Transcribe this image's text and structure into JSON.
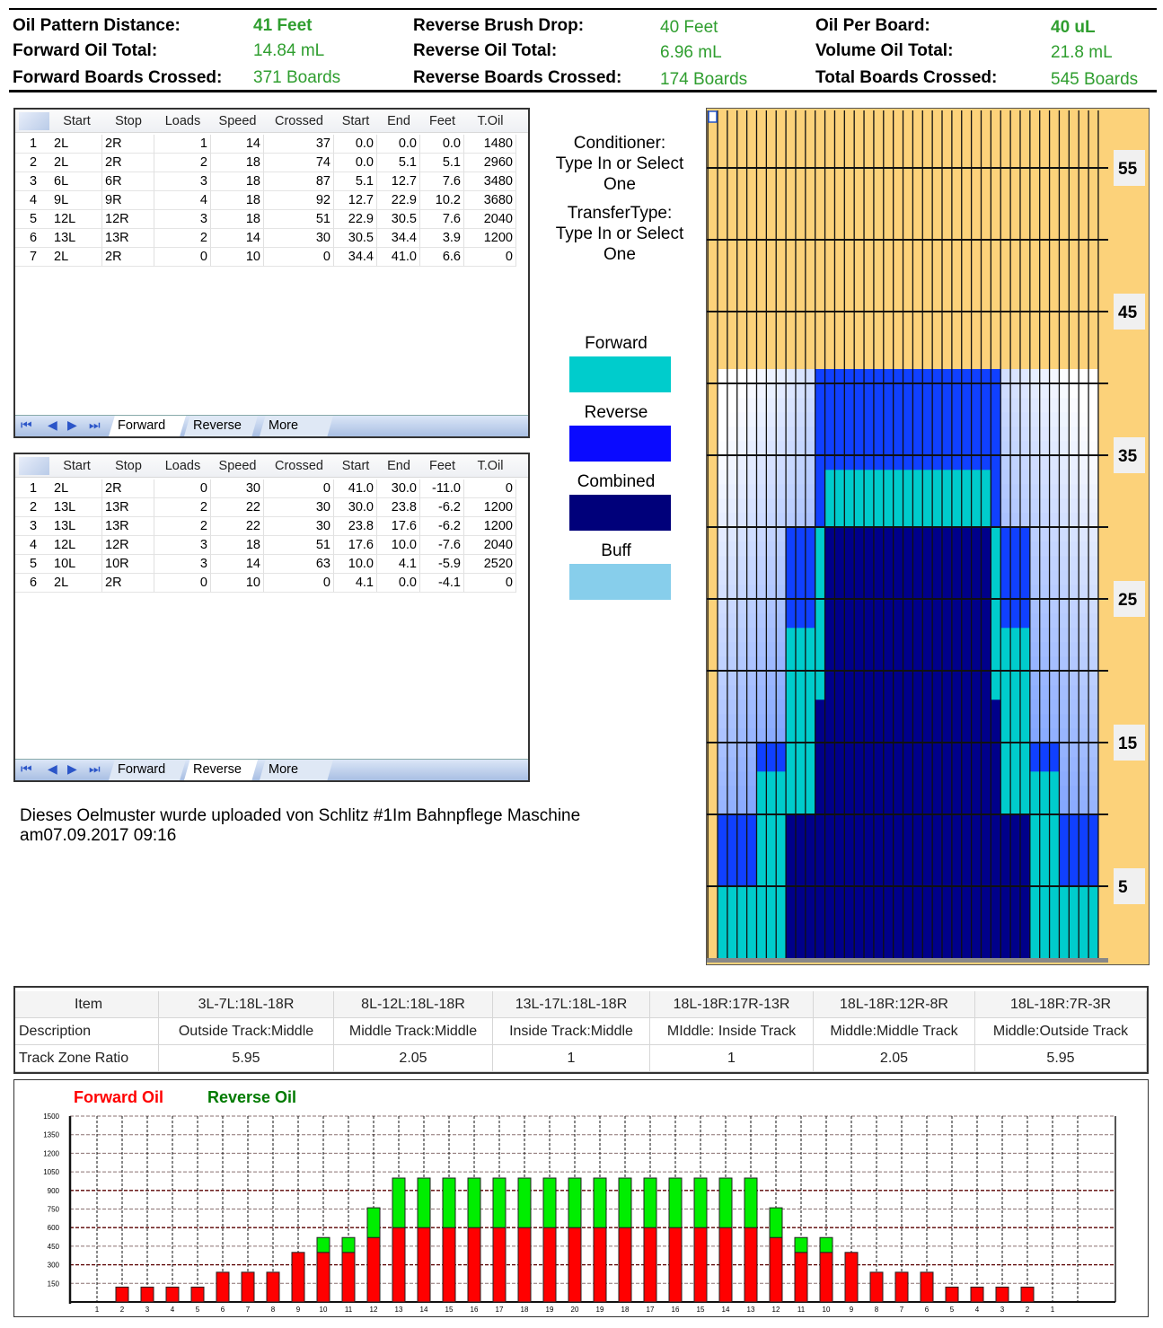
{
  "header": {
    "col1": [
      {
        "label": "Oil Pattern Distance:",
        "value": "41 Feet"
      },
      {
        "label": "Forward Oil Total:",
        "value": "14.84 mL"
      },
      {
        "label": "Forward Boards Crossed:",
        "value": "371 Boards"
      }
    ],
    "col2": [
      {
        "label": "Reverse Brush Drop:",
        "value": "40 Feet"
      },
      {
        "label": "Reverse Oil Total:",
        "value": "6.96 mL"
      },
      {
        "label": "Reverse Boards Crossed:",
        "value": "174 Boards"
      }
    ],
    "col3": [
      {
        "label": "Oil Per Board:",
        "value": "40 uL"
      },
      {
        "label": "Volume Oil Total:",
        "value": "21.8 mL"
      },
      {
        "label": "Total Boards Crossed:",
        "value": "545 Boards"
      }
    ]
  },
  "columns": [
    "Start",
    "Stop",
    "Loads",
    "Speed",
    "Crossed",
    "Start",
    "End",
    "Feet",
    "T.Oil"
  ],
  "forward_table": {
    "rows": [
      [
        "1",
        "2L",
        "2R",
        "1",
        "14",
        "37",
        "0.0",
        "0.0",
        "0.0",
        "1480"
      ],
      [
        "2",
        "2L",
        "2R",
        "2",
        "18",
        "74",
        "0.0",
        "5.1",
        "5.1",
        "2960"
      ],
      [
        "3",
        "6L",
        "6R",
        "3",
        "18",
        "87",
        "5.1",
        "12.7",
        "7.6",
        "3480"
      ],
      [
        "4",
        "9L",
        "9R",
        "4",
        "18",
        "92",
        "12.7",
        "22.9",
        "10.2",
        "3680"
      ],
      [
        "5",
        "12L",
        "12R",
        "3",
        "18",
        "51",
        "22.9",
        "30.5",
        "7.6",
        "2040"
      ],
      [
        "6",
        "13L",
        "13R",
        "2",
        "14",
        "30",
        "30.5",
        "34.4",
        "3.9",
        "1200"
      ],
      [
        "7",
        "2L",
        "2R",
        "0",
        "10",
        "0",
        "34.4",
        "41.0",
        "6.6",
        "0"
      ]
    ],
    "active_tab": 0
  },
  "reverse_table": {
    "rows": [
      [
        "1",
        "2L",
        "2R",
        "0",
        "30",
        "0",
        "41.0",
        "30.0",
        "-11.0",
        "0"
      ],
      [
        "2",
        "13L",
        "13R",
        "2",
        "22",
        "30",
        "30.0",
        "23.8",
        "-6.2",
        "1200"
      ],
      [
        "3",
        "13L",
        "13R",
        "2",
        "22",
        "30",
        "23.8",
        "17.6",
        "-6.2",
        "1200"
      ],
      [
        "4",
        "12L",
        "12R",
        "3",
        "18",
        "51",
        "17.6",
        "10.0",
        "-7.6",
        "2040"
      ],
      [
        "5",
        "10L",
        "10R",
        "3",
        "14",
        "63",
        "10.0",
        "4.1",
        "-5.9",
        "2520"
      ],
      [
        "6",
        "2L",
        "2R",
        "0",
        "10",
        "0",
        "4.1",
        "0.0",
        "-4.1",
        "0"
      ]
    ],
    "active_tab": 1
  },
  "tabs": [
    "Forward",
    "Reverse",
    "More"
  ],
  "side": {
    "conditioner": "Conditioner:\nType In or Select\nOne",
    "transfer": "TransferType:\nType In or Select\nOne"
  },
  "legend": [
    {
      "label": "Forward",
      "color": "#00cccc"
    },
    {
      "label": "Reverse",
      "color": "#0a0aff"
    },
    {
      "label": "Combined",
      "color": "#00007a"
    },
    {
      "label": "Buff",
      "color": "#87ceeb"
    }
  ],
  "note": "Dieses Oelmuster wurde uploaded von Schlitz #1Im Bahnpflege Maschine\nam07.09.2017 09:16",
  "lane": {
    "feet_labels": [
      "55",
      "45",
      "35",
      "25",
      "15",
      "5"
    ],
    "colors": {
      "background": "#fcd27a",
      "forward": "#00cccc",
      "reverse": "#1040ff",
      "combined": "#00008a",
      "buff_light": "#ffffff",
      "buff_dark": "#4a7dff"
    }
  },
  "zones": {
    "header": [
      "Item",
      "3L-7L:18L-18R",
      "8L-12L:18L-18R",
      "13L-17L:18L-18R",
      "18L-18R:17R-13R",
      "18L-18R:12R-8R",
      "18L-18R:7R-3R"
    ],
    "description": [
      "Description",
      "Outside Track:Middle",
      "Middle Track:Middle",
      "Inside Track:Middle",
      "MIddle: Inside Track",
      "Middle:Middle Track",
      "Middle:Outside Track"
    ],
    "ratio": [
      "Track Zone Ratio",
      "5.95",
      "2.05",
      "1",
      "1",
      "2.05",
      "5.95"
    ]
  },
  "chart_data": {
    "type": "bar",
    "stacked": true,
    "categories": [
      "1",
      "2",
      "3",
      "4",
      "5",
      "6",
      "7",
      "8",
      "9",
      "10",
      "11",
      "12",
      "13",
      "14",
      "15",
      "16",
      "17",
      "18",
      "19",
      "20",
      "19",
      "18",
      "17",
      "16",
      "15",
      "14",
      "13",
      "12",
      "11",
      "10",
      "9",
      "8",
      "7",
      "6",
      "5",
      "4",
      "3",
      "2",
      "1"
    ],
    "series": [
      {
        "name": "Forward Oil",
        "color": "#ff0000",
        "values": [
          0,
          120,
          120,
          120,
          120,
          240,
          240,
          240,
          400,
          400,
          400,
          520,
          600,
          600,
          600,
          600,
          600,
          600,
          600,
          600,
          600,
          600,
          600,
          600,
          600,
          600,
          600,
          520,
          400,
          400,
          400,
          240,
          240,
          240,
          120,
          120,
          120,
          120,
          0
        ]
      },
      {
        "name": "Reverse Oil",
        "color": "#00ee00",
        "values": [
          0,
          0,
          0,
          0,
          0,
          0,
          0,
          0,
          0,
          120,
          120,
          240,
          400,
          400,
          400,
          400,
          400,
          400,
          400,
          400,
          400,
          400,
          400,
          400,
          400,
          400,
          400,
          240,
          120,
          120,
          0,
          0,
          0,
          0,
          0,
          0,
          0,
          0,
          0
        ]
      }
    ],
    "yticks": [
      150,
      300,
      450,
      600,
      750,
      900,
      1050,
      1200,
      1350,
      1500
    ],
    "ylim": [
      0,
      1500
    ],
    "grid": true,
    "legend": "top-left"
  }
}
